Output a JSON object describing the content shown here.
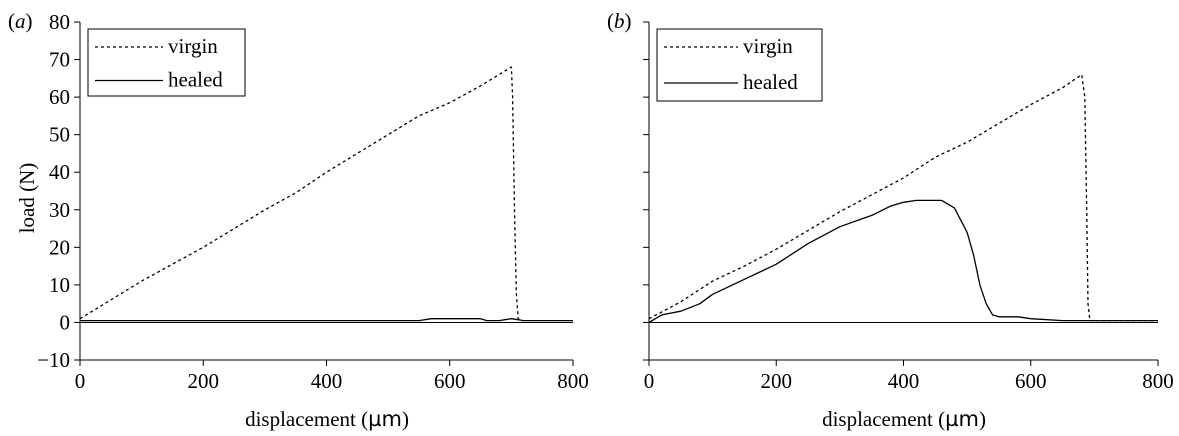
{
  "chart_data": [
    {
      "type": "line",
      "panel_label_open": "(",
      "panel_label_letter": "a",
      "panel_label_close": ")",
      "title": "",
      "xlabel_prefix": "displacement (",
      "xlabel_unit": "µm",
      "xlabel_suffix": ")",
      "ylabel": "load (N)",
      "xlim": [
        0,
        800
      ],
      "ylim": [
        -10,
        80
      ],
      "xticks": [
        "0",
        "200",
        "400",
        "600",
        "800"
      ],
      "yticks": [
        "−10",
        "0",
        "10",
        "20",
        "30",
        "40",
        "50",
        "60",
        "70",
        "80"
      ],
      "grid": false,
      "legend": "top-left",
      "series": [
        {
          "name": "virgin",
          "style": "dotted",
          "x": [
            0,
            50,
            100,
            150,
            200,
            250,
            300,
            350,
            400,
            450,
            500,
            550,
            600,
            650,
            690,
            700,
            702,
            705,
            708,
            711,
            716,
            720
          ],
          "y": [
            1,
            6,
            11,
            15.5,
            20,
            25,
            30,
            34.5,
            40,
            45,
            50,
            55,
            58.5,
            63,
            67,
            68,
            60,
            30,
            8,
            1,
            0.5,
            0.5
          ]
        },
        {
          "name": "healed",
          "style": "solid",
          "x": [
            0,
            100,
            200,
            300,
            400,
            500,
            550,
            570,
            600,
            650,
            660,
            680,
            700,
            720,
            740,
            760,
            780,
            800
          ],
          "y": [
            0.5,
            0.5,
            0.5,
            0.5,
            0.5,
            0.5,
            0.5,
            1,
            1,
            1,
            0.5,
            0.5,
            1,
            0.5,
            0.5,
            0.5,
            0.5,
            0.5
          ]
        }
      ]
    },
    {
      "type": "line",
      "panel_label_open": "(",
      "panel_label_letter": "b",
      "panel_label_close": ")",
      "title": "",
      "xlabel_prefix": "displacement (",
      "xlabel_unit": "µm",
      "xlabel_suffix": ")",
      "ylabel": "",
      "xlim": [
        0,
        800
      ],
      "ylim": [
        -10,
        80
      ],
      "xticks": [
        "0",
        "200",
        "400",
        "600",
        "800"
      ],
      "yticks": [],
      "grid": false,
      "legend": "top-left",
      "series": [
        {
          "name": "virgin",
          "style": "dotted",
          "x": [
            0,
            50,
            100,
            150,
            200,
            250,
            300,
            350,
            400,
            450,
            500,
            550,
            600,
            650,
            680,
            685,
            688,
            690,
            693,
            700,
            750,
            800
          ],
          "y": [
            1,
            5.5,
            11,
            15,
            19.5,
            24.5,
            29.5,
            34,
            38.5,
            44,
            48,
            53,
            58,
            62.5,
            66,
            60,
            30,
            5,
            0.5,
            0.5,
            0.5,
            0.5
          ]
        },
        {
          "name": "healed",
          "style": "solid",
          "x": [
            0,
            20,
            50,
            80,
            100,
            150,
            200,
            250,
            300,
            350,
            380,
            400,
            420,
            440,
            460,
            480,
            500,
            510,
            520,
            530,
            540,
            550,
            580,
            600,
            650,
            700,
            750,
            800
          ],
          "y": [
            0,
            2,
            3,
            5,
            7.5,
            11.5,
            15.5,
            21,
            25.5,
            28.5,
            31,
            32,
            32.5,
            32.5,
            32.5,
            30.5,
            24,
            18,
            10,
            5,
            2,
            1.5,
            1.5,
            1,
            0.5,
            0.5,
            0.5,
            0.5
          ]
        }
      ]
    }
  ]
}
